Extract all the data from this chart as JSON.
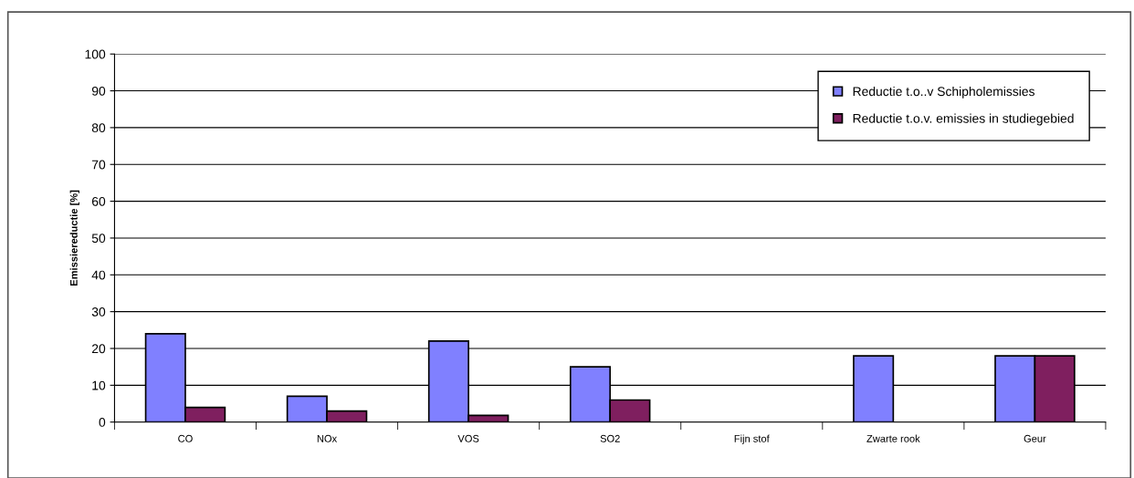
{
  "chart_data": {
    "type": "bar",
    "ylabel": "Emissiereductie [%]",
    "categories": [
      "CO",
      "NOx",
      "VOS",
      "SO2",
      "Fijn stof",
      "Zwarte rook",
      "Geur"
    ],
    "series": [
      {
        "name": "Reductie t.o..v Schipholemissies",
        "color": "#8080ff",
        "values": [
          24,
          7,
          22,
          15,
          null,
          18,
          18
        ]
      },
      {
        "name": "Reductie t.o.v. emissies in studiegebied",
        "color": "#7f1f5f",
        "values": [
          4,
          3,
          1.8,
          6,
          null,
          null,
          18
        ]
      }
    ],
    "ylim": [
      0,
      100
    ],
    "yticks": [
      0,
      10,
      20,
      30,
      40,
      50,
      60,
      70,
      80,
      90,
      100
    ],
    "grid": "y",
    "legend": "top right"
  }
}
